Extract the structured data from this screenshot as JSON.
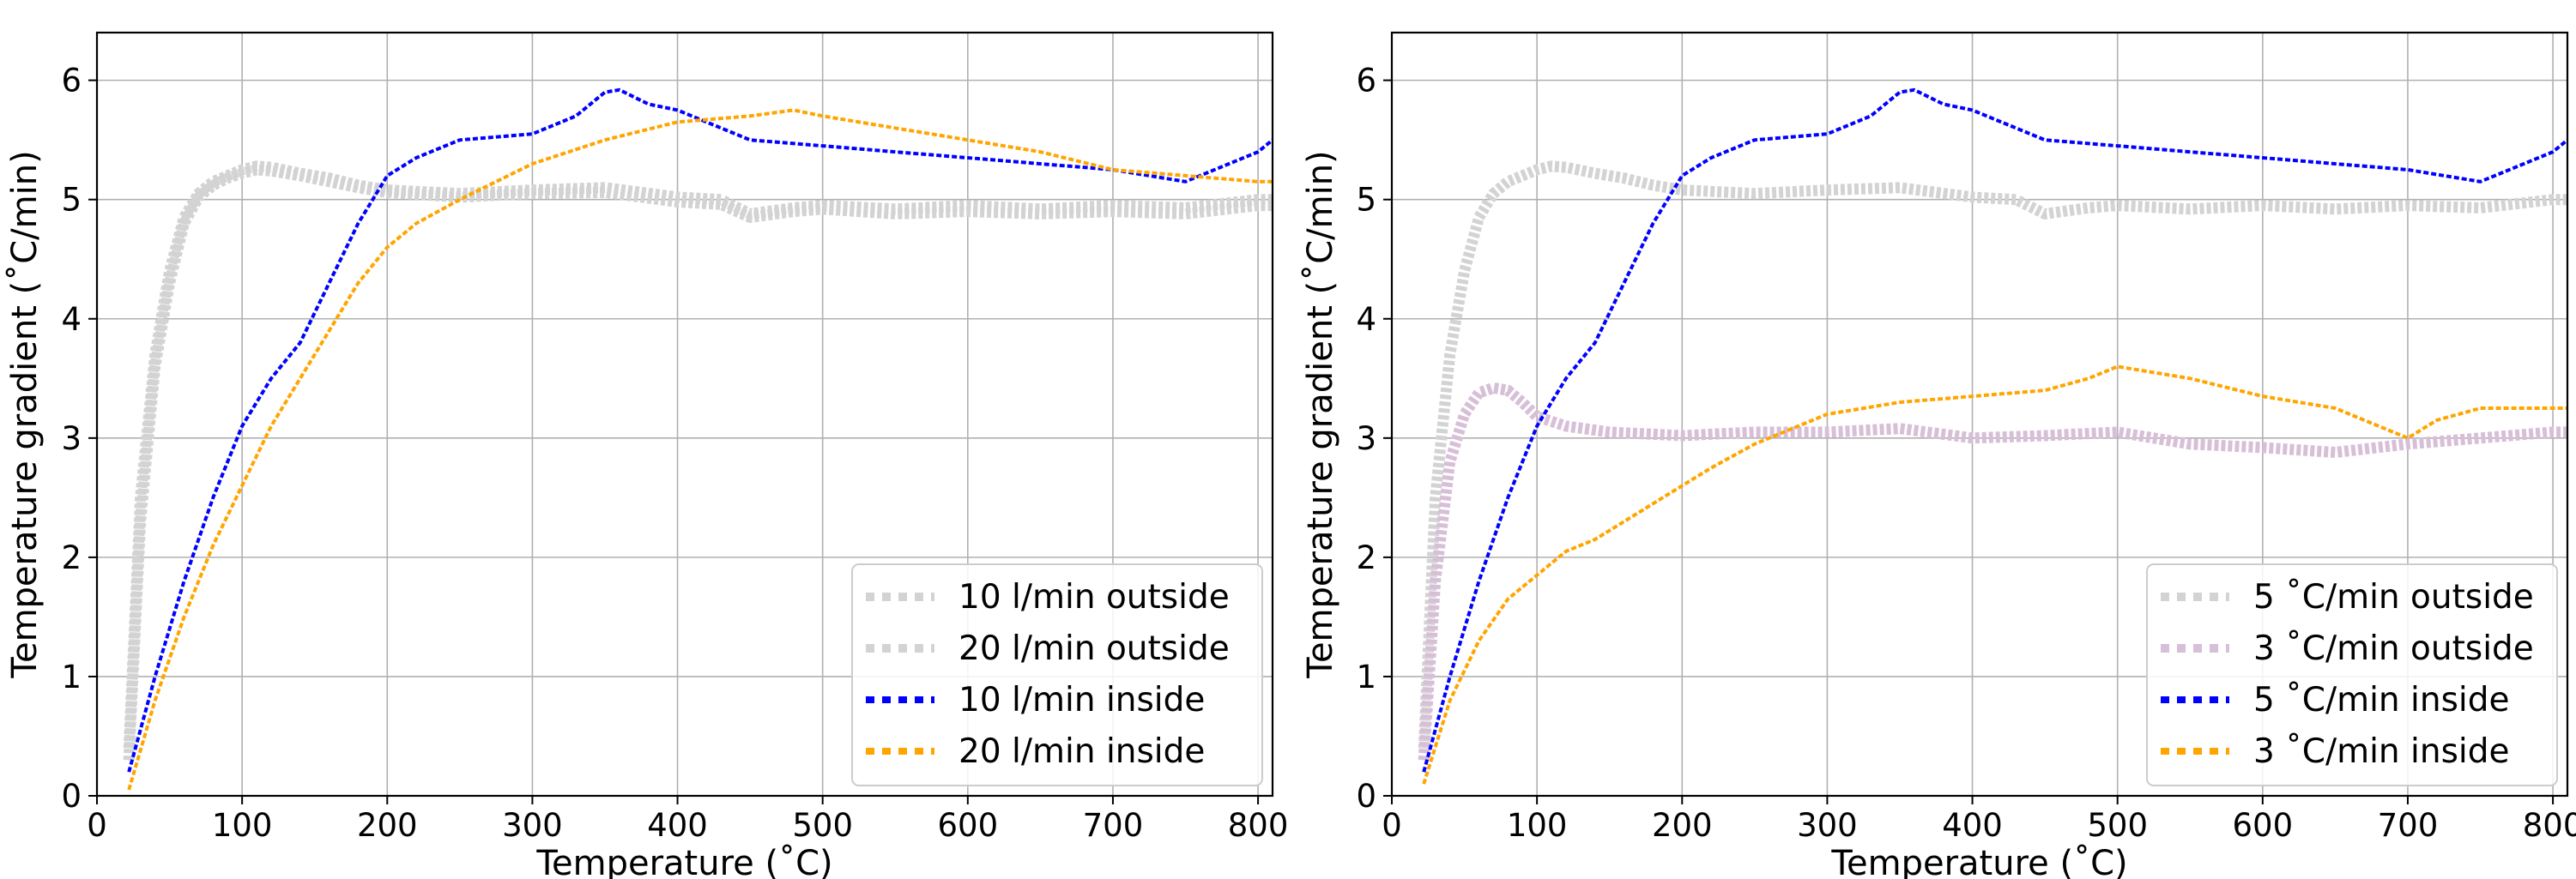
{
  "chart_data": [
    {
      "type": "line",
      "xlabel": "Temperature (˚C)",
      "ylabel": "Temperature gradient (˚C/min)",
      "xlim": [
        0,
        810
      ],
      "ylim": [
        0,
        6.4
      ],
      "xticks": [
        "0",
        "100",
        "200",
        "300",
        "400",
        "500",
        "600",
        "700",
        "800"
      ],
      "yticks": [
        "0",
        "1",
        "2",
        "3",
        "4",
        "5",
        "6"
      ],
      "grid": true,
      "legend_position": "lower-right",
      "series": [
        {
          "name": "10 l/min outside",
          "color": "#d3d3d3",
          "x": [
            22,
            30,
            40,
            50,
            60,
            70,
            80,
            90,
            100,
            110,
            120,
            140,
            160,
            180,
            200,
            250,
            300,
            350,
            400,
            430,
            450,
            480,
            500,
            550,
            600,
            650,
            700,
            750,
            800,
            810
          ],
          "y": [
            0.4,
            2.5,
            3.7,
            4.4,
            4.85,
            5.05,
            5.15,
            5.2,
            5.25,
            5.28,
            5.27,
            5.22,
            5.18,
            5.12,
            5.08,
            5.05,
            5.08,
            5.1,
            5.02,
            5.0,
            4.88,
            4.93,
            4.95,
            4.92,
            4.95,
            4.92,
            4.95,
            4.93,
            5.0,
            5.0
          ]
        },
        {
          "name": "20 l/min outside",
          "color": "#d3d3d3",
          "x": [
            22,
            30,
            40,
            50,
            60,
            70,
            80,
            90,
            100,
            110,
            120,
            140,
            160,
            180,
            200,
            250,
            300,
            350,
            400,
            430,
            450,
            480,
            500,
            550,
            600,
            650,
            700,
            750,
            800,
            810
          ],
          "y": [
            0.3,
            2.3,
            3.6,
            4.3,
            4.8,
            5.02,
            5.12,
            5.18,
            5.22,
            5.25,
            5.24,
            5.2,
            5.15,
            5.1,
            5.06,
            5.02,
            5.05,
            5.06,
            4.98,
            4.96,
            4.85,
            4.9,
            4.92,
            4.88,
            4.9,
            4.88,
            4.9,
            4.88,
            4.95,
            4.95
          ]
        },
        {
          "name": "10 l/min inside",
          "color": "#0000ff",
          "x": [
            22,
            40,
            60,
            80,
            100,
            120,
            140,
            160,
            180,
            200,
            220,
            250,
            300,
            330,
            350,
            360,
            380,
            400,
            450,
            500,
            550,
            600,
            650,
            700,
            750,
            780,
            800,
            810
          ],
          "y": [
            0.2,
            1.0,
            1.8,
            2.5,
            3.1,
            3.5,
            3.8,
            4.3,
            4.8,
            5.2,
            5.35,
            5.5,
            5.55,
            5.7,
            5.9,
            5.92,
            5.8,
            5.75,
            5.5,
            5.45,
            5.4,
            5.35,
            5.3,
            5.25,
            5.15,
            5.3,
            5.4,
            5.5
          ]
        },
        {
          "name": "20 l/min inside",
          "color": "#ffa500",
          "x": [
            22,
            40,
            60,
            80,
            100,
            120,
            140,
            160,
            180,
            200,
            220,
            250,
            300,
            350,
            400,
            450,
            480,
            500,
            550,
            600,
            650,
            700,
            750,
            800,
            810
          ],
          "y": [
            0.05,
            0.8,
            1.5,
            2.1,
            2.6,
            3.1,
            3.5,
            3.9,
            4.3,
            4.6,
            4.8,
            5.0,
            5.3,
            5.5,
            5.65,
            5.7,
            5.75,
            5.7,
            5.6,
            5.5,
            5.4,
            5.25,
            5.2,
            5.15,
            5.15
          ]
        }
      ]
    },
    {
      "type": "line",
      "xlabel": "Temperature (˚C)",
      "ylabel": "Temperature gradient (˚C/min)",
      "xlim": [
        0,
        810
      ],
      "ylim": [
        0,
        6.4
      ],
      "xticks": [
        "0",
        "100",
        "200",
        "300",
        "400",
        "500",
        "600",
        "700",
        "800"
      ],
      "yticks": [
        "0",
        "1",
        "2",
        "3",
        "4",
        "5",
        "6"
      ],
      "grid": true,
      "legend_position": "lower-right",
      "series": [
        {
          "name": "5 ˚C/min outside",
          "color": "#d3d3d3",
          "x": [
            22,
            30,
            40,
            50,
            60,
            70,
            80,
            90,
            100,
            110,
            120,
            140,
            160,
            180,
            200,
            250,
            300,
            350,
            400,
            430,
            450,
            480,
            500,
            550,
            600,
            650,
            700,
            750,
            800,
            810
          ],
          "y": [
            0.4,
            2.5,
            3.7,
            4.4,
            4.85,
            5.05,
            5.15,
            5.2,
            5.25,
            5.28,
            5.27,
            5.22,
            5.18,
            5.12,
            5.08,
            5.05,
            5.08,
            5.1,
            5.02,
            5.0,
            4.88,
            4.93,
            4.95,
            4.92,
            4.95,
            4.92,
            4.95,
            4.93,
            5.0,
            5.0
          ]
        },
        {
          "name": "3 ˚C/min outside",
          "color": "#d8bfd8",
          "x": [
            22,
            30,
            40,
            50,
            60,
            70,
            80,
            90,
            100,
            120,
            150,
            200,
            250,
            300,
            350,
            400,
            450,
            500,
            550,
            600,
            650,
            700,
            750,
            800,
            810
          ],
          "y": [
            0.3,
            1.8,
            2.8,
            3.2,
            3.38,
            3.42,
            3.4,
            3.3,
            3.18,
            3.1,
            3.05,
            3.02,
            3.05,
            3.05,
            3.08,
            3.0,
            3.02,
            3.05,
            2.95,
            2.92,
            2.88,
            2.95,
            3.0,
            3.05,
            3.05
          ]
        },
        {
          "name": "5 ˚C/min inside",
          "color": "#0000ff",
          "x": [
            22,
            40,
            60,
            80,
            100,
            120,
            140,
            160,
            180,
            200,
            220,
            250,
            300,
            330,
            350,
            360,
            380,
            400,
            450,
            500,
            550,
            600,
            650,
            700,
            750,
            780,
            800,
            810
          ],
          "y": [
            0.2,
            1.0,
            1.8,
            2.5,
            3.1,
            3.5,
            3.8,
            4.3,
            4.8,
            5.2,
            5.35,
            5.5,
            5.55,
            5.7,
            5.9,
            5.92,
            5.8,
            5.75,
            5.5,
            5.45,
            5.4,
            5.35,
            5.3,
            5.25,
            5.15,
            5.3,
            5.4,
            5.5
          ]
        },
        {
          "name": "3 ˚C/min inside",
          "color": "#ffa500",
          "x": [
            22,
            40,
            60,
            80,
            100,
            110,
            120,
            140,
            160,
            180,
            200,
            220,
            250,
            280,
            300,
            350,
            400,
            450,
            480,
            500,
            550,
            600,
            650,
            680,
            700,
            720,
            750,
            800,
            810
          ],
          "y": [
            0.1,
            0.8,
            1.3,
            1.65,
            1.85,
            1.95,
            2.05,
            2.15,
            2.3,
            2.45,
            2.6,
            2.75,
            2.95,
            3.1,
            3.2,
            3.3,
            3.35,
            3.4,
            3.5,
            3.6,
            3.5,
            3.35,
            3.25,
            3.1,
            3.0,
            3.15,
            3.25,
            3.25,
            3.25
          ]
        }
      ]
    }
  ]
}
